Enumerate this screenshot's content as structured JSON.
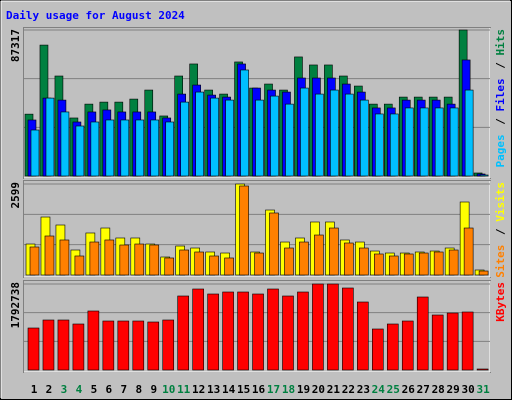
{
  "chart_data": [
    {
      "type": "bar",
      "title": "Daily usage for August 2024",
      "categories": [
        "1",
        "2",
        "3",
        "4",
        "5",
        "6",
        "7",
        "8",
        "9",
        "10",
        "11",
        "12",
        "13",
        "14",
        "15",
        "16",
        "17",
        "18",
        "19",
        "20",
        "21",
        "22",
        "23",
        "24",
        "25",
        "26",
        "27",
        "28",
        "29",
        "30",
        "31"
      ],
      "category_colors": [
        "#000000",
        "#000000",
        "#008040",
        "#008040",
        "#000000",
        "#000000",
        "#000000",
        "#000000",
        "#000000",
        "#008040",
        "#008040",
        "#000000",
        "#000000",
        "#000000",
        "#000000",
        "#000000",
        "#008040",
        "#008040",
        "#000000",
        "#000000",
        "#000000",
        "#000000",
        "#000000",
        "#008040",
        "#008040",
        "#000000",
        "#000000",
        "#000000",
        "#000000",
        "#000000",
        "#008040"
      ],
      "legend_separator": "/",
      "ylim": [
        0,
        87317
      ],
      "yticks": [
        87317
      ],
      "series": [
        {
          "name": "Hits",
          "color": "#008040",
          "values": [
            37000,
            78300,
            59800,
            34700,
            43000,
            44200,
            44200,
            46000,
            51400,
            35900,
            59800,
            67000,
            51400,
            49000,
            68200,
            52600,
            55000,
            51400,
            71200,
            66400,
            66400,
            59800,
            53800,
            43000,
            43000,
            47200,
            47200,
            47200,
            47200,
            87317,
            1800
          ]
        },
        {
          "name": "Files",
          "color": "#0000ff",
          "values": [
            33500,
            46600,
            45400,
            32300,
            38300,
            39500,
            38300,
            38300,
            38300,
            34700,
            49000,
            54400,
            48400,
            47200,
            67000,
            52600,
            51400,
            50200,
            58600,
            58600,
            58600,
            55000,
            50200,
            40700,
            40700,
            45400,
            45400,
            45400,
            43000,
            69400,
            1200
          ]
        },
        {
          "name": "Pages",
          "color": "#00c0ff",
          "values": [
            27500,
            46600,
            38300,
            29900,
            32300,
            33500,
            33500,
            33500,
            33500,
            32300,
            44200,
            50200,
            46600,
            45400,
            63400,
            45400,
            47800,
            43000,
            52600,
            49000,
            51400,
            49000,
            45400,
            37100,
            37100,
            40700,
            40700,
            40700,
            40700,
            51400,
            600
          ]
        }
      ]
    },
    {
      "type": "bar",
      "legend_separator": "/",
      "ylim": [
        0,
        2599
      ],
      "yticks": [
        2599
      ],
      "series": [
        {
          "name": "Visits",
          "color": "#ffff00",
          "values": [
            885,
            1656,
            1428,
            714,
            1200,
            1342,
            1057,
            1057,
            885,
            514,
            828,
            771,
            657,
            628,
            2599,
            657,
            1856,
            942,
            1057,
            1514,
            1514,
            1000,
            942,
            685,
            628,
            628,
            657,
            685,
            771,
            2085,
            143
          ]
        },
        {
          "name": "Sites",
          "color": "#ff8000",
          "values": [
            800,
            1114,
            1000,
            543,
            942,
            1000,
            857,
            885,
            857,
            486,
            714,
            657,
            543,
            486,
            2542,
            628,
            1771,
            771,
            942,
            1142,
            1342,
            914,
            771,
            600,
            543,
            600,
            628,
            657,
            714,
            1342,
            114
          ]
        }
      ]
    },
    {
      "type": "bar",
      "ylim": [
        0,
        1792738
      ],
      "yticks": [
        1792738
      ],
      "series": [
        {
          "name": "KBytes",
          "color": "#ff0000",
          "values": [
            875500,
            1042300,
            1042300,
            958900,
            1229900,
            1021500,
            1021500,
            1021500,
            1000600,
            1042300,
            1542600,
            1688500,
            1584300,
            1626000,
            1626000,
            1584300,
            1688500,
            1542600,
            1626000,
            1792738,
            1792738,
            1709400,
            1417500,
            854700,
            958900,
            1021500,
            1521800,
            1146500,
            1188200,
            1209100,
            20800
          ]
        }
      ]
    }
  ]
}
